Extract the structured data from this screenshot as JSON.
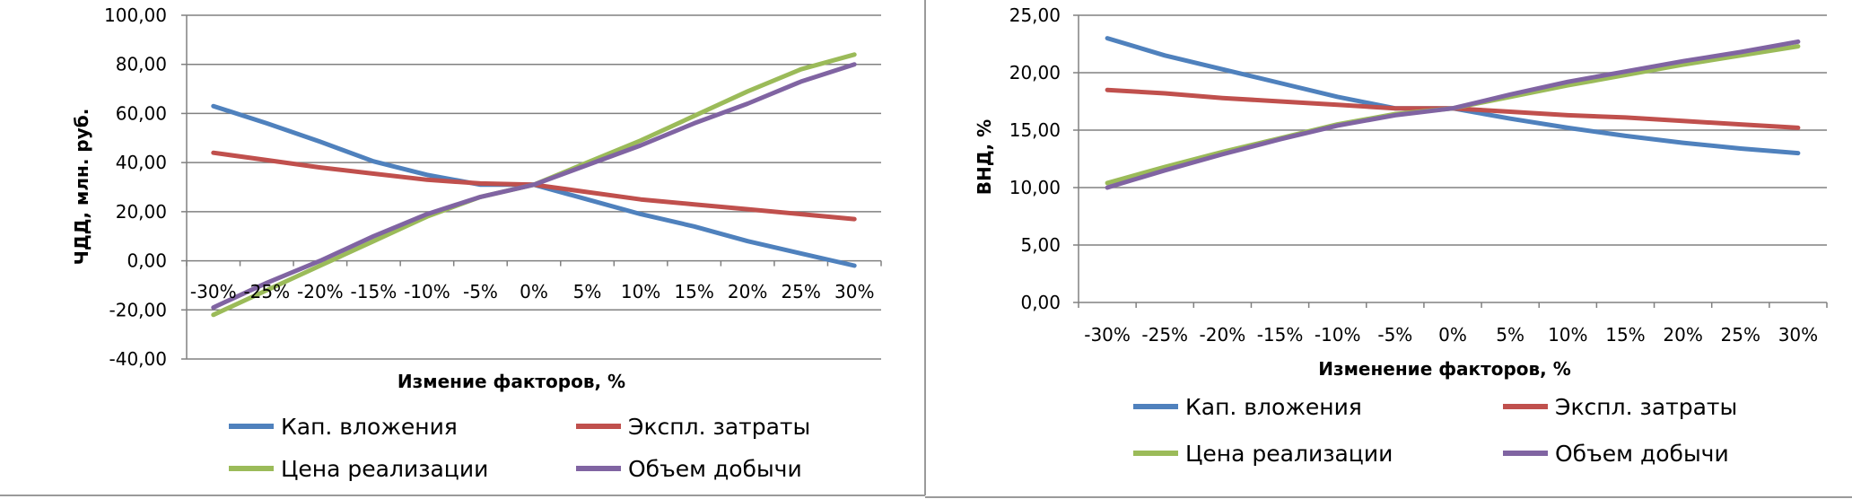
{
  "chart_data": [
    {
      "type": "line",
      "categories": [
        "-30%",
        "-25%",
        "-20%",
        "-15%",
        "-10%",
        "-5%",
        "0%",
        "5%",
        "10%",
        "15%",
        "20%",
        "25%",
        "30%"
      ],
      "ylabel": "ЧДД, млн. руб.",
      "xlabel": "Измение факторов, %",
      "ylim": [
        -40,
        100
      ],
      "yticks": [
        "-40,00",
        "-20,00",
        "0,00",
        "20,00",
        "40,00",
        "60,00",
        "80,00",
        "100,00"
      ],
      "grid": true,
      "series": [
        {
          "name": "Кап. вложения",
          "color": "#4f81bd",
          "values": [
            63,
            56,
            48.5,
            40.5,
            35,
            31,
            31,
            25,
            19,
            14,
            8,
            3,
            -2
          ]
        },
        {
          "name": "Экспл. затраты",
          "color": "#c0504d",
          "values": [
            44,
            41,
            38,
            35.5,
            33,
            31.5,
            31,
            28,
            25,
            23,
            21,
            19,
            17
          ]
        },
        {
          "name": "Цена реализации",
          "color": "#9bbb59",
          "values": [
            -22,
            -12,
            -2,
            8,
            18,
            26,
            31,
            40,
            49,
            59,
            69,
            78,
            84
          ]
        },
        {
          "name": "Объем добычи",
          "color": "#8064a2",
          "values": [
            -19,
            -9,
            0,
            10,
            19,
            26,
            31,
            39,
            47,
            56,
            64,
            73,
            80
          ]
        }
      ]
    },
    {
      "type": "line",
      "categories": [
        "-30%",
        "-25%",
        "-20%",
        "-15%",
        "-10%",
        "-5%",
        "0%",
        "5%",
        "10%",
        "15%",
        "20%",
        "25%",
        "30%"
      ],
      "ylabel": "ВНД, %",
      "xlabel": "Изменение факторов, %",
      "ylim": [
        0,
        25
      ],
      "yticks": [
        "0,00",
        "5,00",
        "10,00",
        "15,00",
        "20,00",
        "25,00"
      ],
      "grid": true,
      "series": [
        {
          "name": "Кап. вложения",
          "color": "#4f81bd",
          "values": [
            23,
            21.5,
            20.3,
            19.1,
            17.9,
            16.9,
            16.9,
            16,
            15.2,
            14.5,
            13.9,
            13.4,
            13
          ]
        },
        {
          "name": "Экспл. затраты",
          "color": "#c0504d",
          "values": [
            18.5,
            18.2,
            17.8,
            17.5,
            17.2,
            16.9,
            16.9,
            16.6,
            16.3,
            16.1,
            15.8,
            15.5,
            15.2
          ]
        },
        {
          "name": "Цена реализации",
          "color": "#9bbb59",
          "values": [
            10.4,
            11.8,
            13.1,
            14.3,
            15.5,
            16.4,
            16.9,
            17.9,
            18.9,
            19.8,
            20.7,
            21.5,
            22.3
          ]
        },
        {
          "name": "Объем добычи",
          "color": "#8064a2",
          "values": [
            10,
            11.5,
            12.9,
            14.2,
            15.4,
            16.3,
            16.9,
            18.1,
            19.2,
            20.1,
            21,
            21.8,
            22.7
          ]
        }
      ]
    }
  ]
}
